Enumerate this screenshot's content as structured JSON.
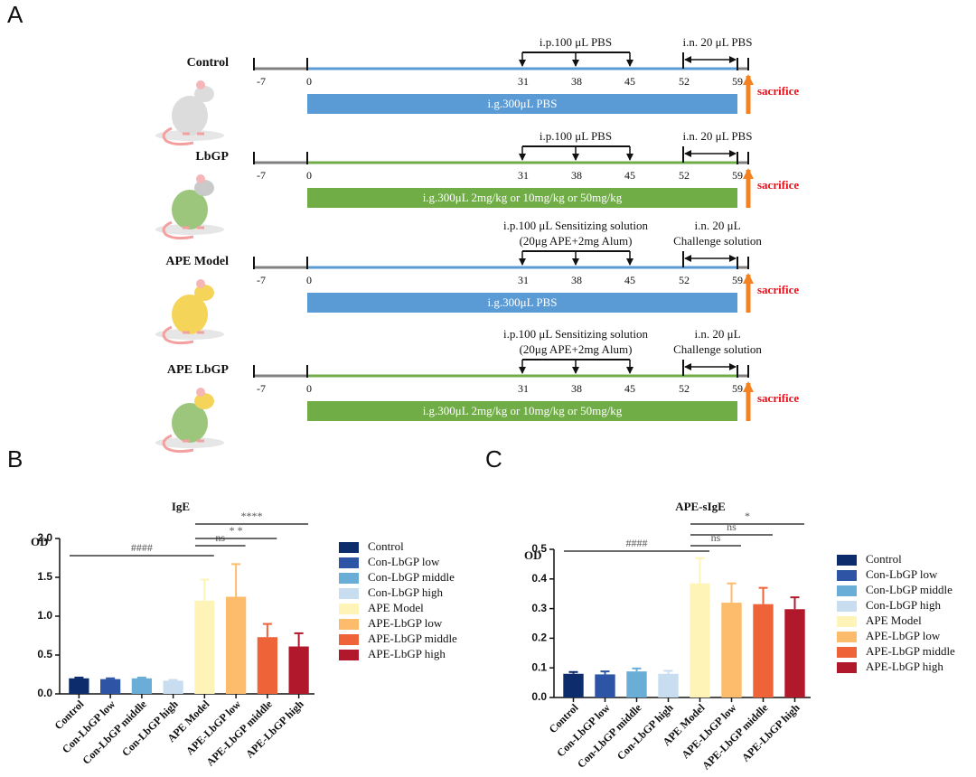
{
  "panel_labels": [
    "A",
    "B",
    "C"
  ],
  "timeline": {
    "days": [
      -7,
      0,
      31,
      38,
      45,
      52,
      59
    ],
    "sacrifice": "sacrifice",
    "groups": [
      {
        "name": "Control",
        "ip": [
          "i.p.100 μL PBS"
        ],
        "in": [
          "i.n. 20 μL PBS"
        ],
        "ig": "i.g.300μL PBS",
        "color": "#5b9bd5"
      },
      {
        "name": "LbGP",
        "ip": [
          "i.p.100 μL PBS"
        ],
        "in": [
          "i.n. 20 μL PBS"
        ],
        "ig": "i.g.300μL 2mg/kg or 10mg/kg or 50mg/kg",
        "color": "#70ad47"
      },
      {
        "name": "APE Model",
        "ip": [
          "i.p.100 μL Sensitizing solution",
          "(20μg APE+2mg Alum)"
        ],
        "in": [
          "i.n. 20 μL",
          "Challenge solution"
        ],
        "ig": "i.g.300μL PBS",
        "color": "#5b9bd5"
      },
      {
        "name": "APE LbGP",
        "ip": [
          "i.p.100 μL Sensitizing solution",
          "(20μg APE+2mg Alum)"
        ],
        "in": [
          "i.n. 20 μL",
          "Challenge solution"
        ],
        "ig": "i.g.300μL 2mg/kg or 10mg/kg or 50mg/kg",
        "color": "#70ad47"
      }
    ]
  },
  "chart_data": [
    {
      "type": "bar",
      "title": "IgE",
      "y_label": "OD",
      "categories": [
        "Control",
        "Con-LbGP low",
        "Con-LbGP middle",
        "Con-LbGP high",
        "APE Model",
        "APE-LbGP low",
        "APE-LbGP middle",
        "APE-LbGP high"
      ],
      "values": [
        0.2,
        0.19,
        0.2,
        0.17,
        1.2,
        1.25,
        0.73,
        0.61
      ],
      "errors": [
        0.01,
        0.01,
        0.01,
        0.01,
        0.27,
        0.42,
        0.17,
        0.17
      ],
      "colors": [
        "#0d2c6c",
        "#2e55a5",
        "#6aaed8",
        "#c8def0",
        "#fff4b8",
        "#fdbb6c",
        "#ef6339",
        "#b2182b"
      ],
      "ylim": [
        0,
        2
      ],
      "yticks": [
        {
          "value": 0,
          "label": "0.0"
        },
        0.5,
        {
          "value": 1,
          "label": "1.0"
        },
        1.5,
        {
          "value": 2,
          "label": "2.0"
        }
      ],
      "annotations": [
        "####",
        "ns",
        "* *",
        "****"
      ],
      "legend": true
    },
    {
      "type": "bar",
      "title": "APE-sIgE",
      "y_label": "OD",
      "categories": [
        "Control",
        "Con-LbGP low",
        "Con-LbGP middle",
        "Con-LbGP high",
        "APE Model",
        "APE-LbGP low",
        "APE-LbGP middle",
        "APE-LbGP high"
      ],
      "values": [
        0.08,
        0.078,
        0.088,
        0.08,
        0.385,
        0.32,
        0.315,
        0.298
      ],
      "errors": [
        0.006,
        0.01,
        0.01,
        0.01,
        0.085,
        0.065,
        0.055,
        0.04
      ],
      "colors": [
        "#0d2c6c",
        "#2e55a5",
        "#6aaed8",
        "#c8def0",
        "#fff4b8",
        "#fdbb6c",
        "#ef6339",
        "#b2182b"
      ],
      "ylim": [
        0,
        0.5
      ],
      "yticks": [
        {
          "value": 0,
          "label": "0.0"
        },
        0.1,
        0.2,
        0.3,
        0.4,
        0.5
      ],
      "annotations": [
        "####",
        "ns",
        "ns",
        "*"
      ],
      "legend": true
    }
  ]
}
